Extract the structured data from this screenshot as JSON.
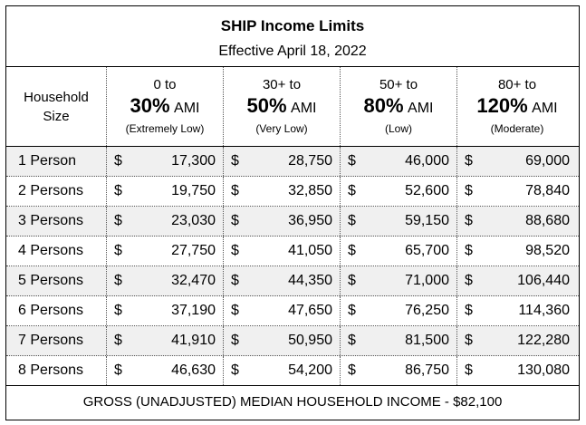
{
  "title": "SHIP Income Limits",
  "subtitle": "Effective April 18, 2022",
  "header": {
    "first_col": [
      "Household",
      "Size"
    ],
    "columns": [
      {
        "range": "0 to",
        "pct": "30%",
        "ami": "AMI",
        "desc": "(Extremely Low)"
      },
      {
        "range": "30+ to",
        "pct": "50%",
        "ami": "AMI",
        "desc": "(Very Low)"
      },
      {
        "range": "50+ to",
        "pct": "80%",
        "ami": "AMI",
        "desc": "(Low)"
      },
      {
        "range": "80+ to",
        "pct": "120%",
        "ami": "AMI",
        "desc": "(Moderate)"
      }
    ]
  },
  "currency_symbol": "$",
  "rows": [
    {
      "label": "1 Person",
      "values": [
        "17,300",
        "28,750",
        "46,000",
        "69,000"
      ]
    },
    {
      "label": "2 Persons",
      "values": [
        "19,750",
        "32,850",
        "52,600",
        "78,840"
      ]
    },
    {
      "label": "3 Persons",
      "values": [
        "23,030",
        "36,950",
        "59,150",
        "88,680"
      ]
    },
    {
      "label": "4 Persons",
      "values": [
        "27,750",
        "41,050",
        "65,700",
        "98,520"
      ]
    },
    {
      "label": "5 Persons",
      "values": [
        "32,470",
        "44,350",
        "71,000",
        "106,440"
      ]
    },
    {
      "label": "6 Persons",
      "values": [
        "37,190",
        "47,650",
        "76,250",
        "114,360"
      ]
    },
    {
      "label": "7 Persons",
      "values": [
        "41,910",
        "50,950",
        "81,500",
        "122,280"
      ]
    },
    {
      "label": "8 Persons",
      "values": [
        "46,630",
        "54,200",
        "86,750",
        "130,080"
      ]
    }
  ],
  "footer": "GROSS (UNADJUSTED) MEDIAN HOUSEHOLD INCOME - $82,100",
  "colors": {
    "shaded_row": "#f0f0f0",
    "border": "#000000"
  }
}
